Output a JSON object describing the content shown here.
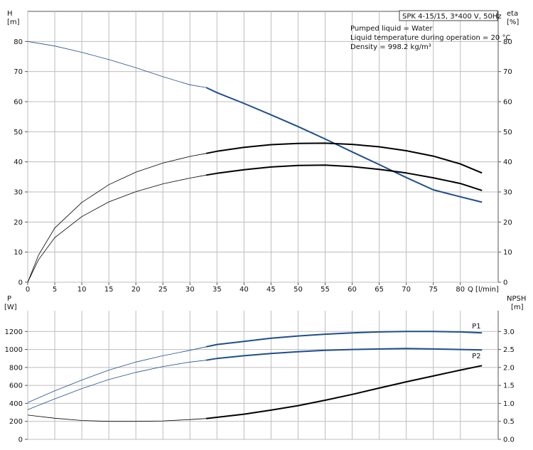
{
  "chart_data": [
    {
      "type": "line",
      "title": "SPK 4-15/15, 3*400 V, 50Hz",
      "annotations": [
        "Pumped liquid = Water",
        "Liquid temperature during operation = 20 °C",
        "Density = 998.2 kg/m³"
      ],
      "xlabel": "Q [l/min]",
      "ylabel_left": {
        "name": "H",
        "unit": "[m]"
      },
      "ylabel_right": {
        "name": "eta",
        "unit": "[%]"
      },
      "xlim": [
        0,
        87
      ],
      "ylim": [
        0,
        90
      ],
      "x_ticks": [
        0,
        5,
        10,
        15,
        20,
        25,
        30,
        35,
        40,
        45,
        50,
        55,
        60,
        65,
        70,
        75,
        80
      ],
      "y_ticks": [
        0,
        10,
        20,
        30,
        40,
        50,
        60,
        70,
        80
      ],
      "grid": true,
      "series": [
        {
          "color": "#1f4e8c",
          "duty_from": 33,
          "x": [
            0,
            5,
            10,
            15,
            20,
            25,
            30,
            33,
            35,
            40,
            45,
            50,
            55,
            60,
            65,
            70,
            75,
            80,
            84
          ],
          "values": [
            80,
            78.5,
            76.4,
            74,
            71.3,
            68.3,
            65.6,
            64.7,
            63,
            59.4,
            55.6,
            51.7,
            47.6,
            43.3,
            39.1,
            34.8,
            30.7,
            28.4,
            26.6
          ]
        },
        {
          "color": "#000000",
          "duty_from": 33,
          "x": [
            0,
            2,
            5,
            10,
            15,
            20,
            25,
            30,
            33,
            35,
            40,
            45,
            50,
            55,
            60,
            65,
            70,
            75,
            80,
            84
          ],
          "values": [
            0,
            9,
            18,
            26.5,
            32.4,
            36.6,
            39.6,
            41.8,
            42.8,
            43.5,
            44.8,
            45.7,
            46.1,
            46.2,
            45.8,
            45,
            43.7,
            41.9,
            39.3,
            36.3
          ]
        },
        {
          "color": "#000000",
          "duty_from": 33,
          "x": [
            0,
            2,
            5,
            10,
            15,
            20,
            25,
            30,
            33,
            35,
            40,
            45,
            50,
            55,
            60,
            65,
            70,
            75,
            80,
            84
          ],
          "values": [
            0,
            7.5,
            14.8,
            21.8,
            26.7,
            30.1,
            32.7,
            34.6,
            35.6,
            36.2,
            37.4,
            38.3,
            38.8,
            38.9,
            38.4,
            37.5,
            36.3,
            34.7,
            32.8,
            30.5
          ]
        }
      ]
    },
    {
      "type": "line",
      "ylabel_left": {
        "name": "P",
        "unit": "[W]"
      },
      "ylabel_right": {
        "name": "NPSH",
        "unit": "[m]"
      },
      "xlim": [
        0,
        87
      ],
      "ylim": [
        0,
        1400
      ],
      "y_ticks": [
        0,
        200,
        400,
        600,
        800,
        1000,
        1200
      ],
      "y_ticks_right": [
        "0.0",
        "0.5",
        "1.0",
        "1.5",
        "2.0",
        "2.5",
        "3.0"
      ],
      "x_grid": [
        0,
        5,
        10,
        15,
        20,
        25,
        30,
        35,
        40,
        45,
        50,
        55,
        60,
        65,
        70,
        75,
        80
      ],
      "grid": true,
      "series": [
        {
          "name": "P1",
          "color": "#1f4e8c",
          "duty_from": 33,
          "x": [
            0,
            5,
            10,
            15,
            20,
            25,
            30,
            33,
            35,
            40,
            45,
            50,
            55,
            60,
            65,
            70,
            75,
            80,
            84
          ],
          "values": [
            410,
            540,
            660,
            770,
            860,
            930,
            990,
            1030,
            1055,
            1090,
            1125,
            1150,
            1170,
            1185,
            1195,
            1200,
            1200,
            1195,
            1185
          ]
        },
        {
          "name": "P2",
          "color": "#1f4e8c",
          "duty_from": 33,
          "x": [
            0,
            5,
            10,
            15,
            20,
            25,
            30,
            33,
            35,
            40,
            45,
            50,
            55,
            60,
            65,
            70,
            75,
            80,
            84
          ],
          "values": [
            330,
            450,
            565,
            665,
            745,
            810,
            860,
            880,
            900,
            930,
            955,
            975,
            990,
            1000,
            1005,
            1010,
            1005,
            1000,
            995
          ]
        },
        {
          "color": "#000000",
          "duty_from": 33,
          "x": [
            0,
            5,
            10,
            15,
            20,
            25,
            30,
            33,
            35,
            40,
            45,
            50,
            55,
            60,
            65,
            70,
            75,
            80,
            84
          ],
          "values": [
            270,
            235,
            210,
            200,
            200,
            205,
            220,
            232,
            245,
            280,
            325,
            375,
            435,
            500,
            570,
            640,
            705,
            770,
            820
          ]
        }
      ]
    }
  ]
}
